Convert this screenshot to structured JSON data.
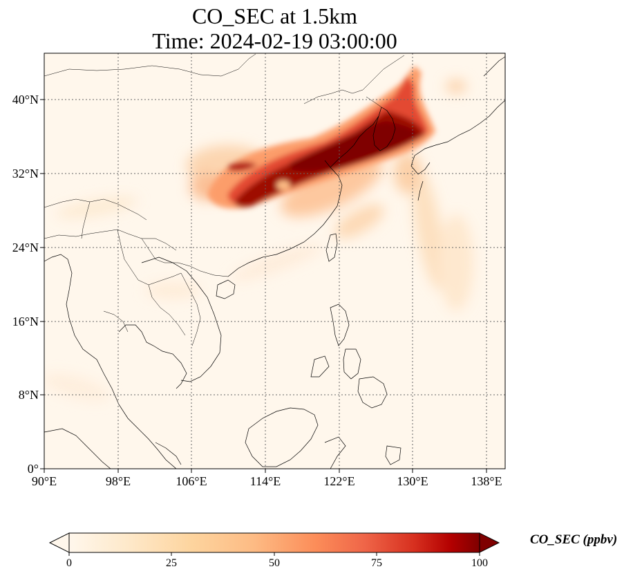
{
  "title": {
    "line1": "CO_SEC at 1.5km",
    "line2": "Time: 2024-02-19 03:00:00"
  },
  "map": {
    "variable": "CO_SEC",
    "level": "1.5km",
    "lon_range": [
      90,
      140
    ],
    "lat_range": [
      0,
      45
    ],
    "lon_ticks": [
      "90°E",
      "98°E",
      "106°E",
      "114°E",
      "122°E",
      "130°E",
      "138°E"
    ],
    "lat_ticks": [
      "0°",
      "8°N",
      "16°N",
      "24°N",
      "32°N",
      "40°N"
    ],
    "gridlines": true,
    "gridline_style": "dotted",
    "coastlines": true,
    "country_borders": true,
    "colormap": "OrRd",
    "plume_description_colors": {
      "low": "#fff7ec",
      "mid": "#fdbb84",
      "high": "#d7301f",
      "max": "#7f0000"
    }
  },
  "colorbar": {
    "label": "CO_SEC (ppbv)",
    "ticks": [
      "0",
      "25",
      "50",
      "75",
      "100"
    ],
    "min": 0,
    "max": 100,
    "extend": "both"
  }
}
